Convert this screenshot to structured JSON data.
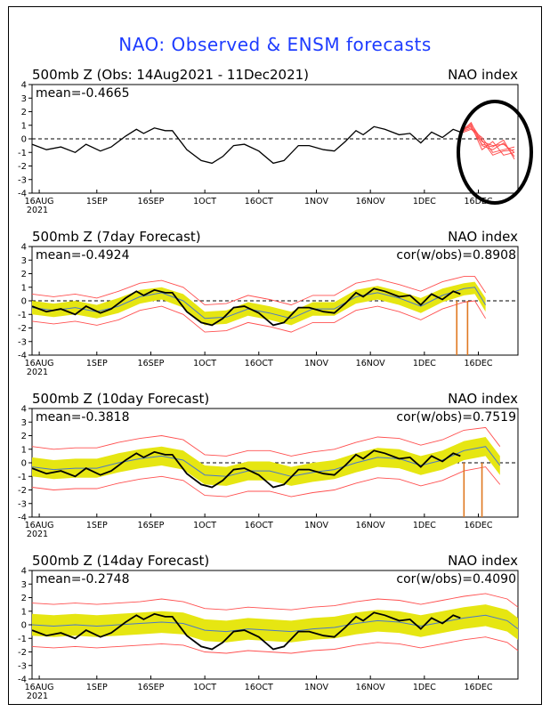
{
  "title": "NAO: Observed & ENSM forecasts",
  "colors": {
    "title": "#1e3cff",
    "observed": "#000000",
    "ensemble_mean": "#4a78c8",
    "spread": "#e6e612",
    "members": "#ff5050",
    "forecast_spike": "#e07820",
    "annotation_circle": "#000000"
  },
  "x_ticks": [
    "16AUG",
    "1SEP",
    "16SEP",
    "1OCT",
    "16OCT",
    "1NOV",
    "16NOV",
    "1DEC",
    "16DEC"
  ],
  "x_year_label": "2021",
  "y_ticks": [
    "4",
    "3",
    "2",
    "1",
    "0",
    "-1",
    "-2",
    "-3",
    "-4"
  ],
  "panels": [
    {
      "key": "obs",
      "label": "500mb Z (Obs: 14Aug2021 - 11Dec2021)",
      "index_label": "NAO index",
      "mean_label": "mean=-0.4665",
      "cor_label": ""
    },
    {
      "key": "d7",
      "label": "500mb Z (7day Forecast)",
      "index_label": "NAO index",
      "mean_label": "mean=-0.4924",
      "cor_label": "cor(w/obs)=0.8908"
    },
    {
      "key": "d10",
      "label": "500mb Z (10day Forecast)",
      "index_label": "NAO index",
      "mean_label": "mean=-0.3818",
      "cor_label": "cor(w/obs)=0.7519"
    },
    {
      "key": "d14",
      "label": "500mb Z (14day Forecast)",
      "index_label": "NAO index",
      "mean_label": "mean=-0.2748",
      "cor_label": "cor(w/obs)=0.4090"
    }
  ],
  "chart_data": {
    "type": "line",
    "x_axis": "date",
    "xlim": [
      "2021-08-14",
      "2021-12-27"
    ],
    "ylim": [
      -4,
      4
    ],
    "observed": {
      "x": [
        "2021-08-14",
        "2021-08-18",
        "2021-08-22",
        "2021-08-26",
        "2021-08-29",
        "2021-09-02",
        "2021-09-05",
        "2021-09-09",
        "2021-09-12",
        "2021-09-14",
        "2021-09-17",
        "2021-09-20",
        "2021-09-22",
        "2021-09-26",
        "2021-09-30",
        "2021-10-03",
        "2021-10-06",
        "2021-10-09",
        "2021-10-12",
        "2021-10-16",
        "2021-10-20",
        "2021-10-23",
        "2021-10-27",
        "2021-10-30",
        "2021-11-03",
        "2021-11-06",
        "2021-11-09",
        "2021-11-12",
        "2021-11-14",
        "2021-11-17",
        "2021-11-20",
        "2021-11-24",
        "2021-11-27",
        "2021-11-30",
        "2021-12-03",
        "2021-12-06",
        "2021-12-09",
        "2021-12-11"
      ],
      "y": [
        -0.4,
        -0.8,
        -0.6,
        -1.0,
        -0.4,
        -0.9,
        -0.6,
        0.2,
        0.7,
        0.4,
        0.8,
        0.6,
        0.6,
        -0.8,
        -1.6,
        -1.8,
        -1.3,
        -0.5,
        -0.4,
        -0.9,
        -1.8,
        -1.6,
        -0.5,
        -0.5,
        -0.8,
        -0.9,
        -0.2,
        0.6,
        0.3,
        0.9,
        0.7,
        0.3,
        0.4,
        -0.3,
        0.5,
        0.1,
        0.7,
        0.5
      ]
    },
    "forecast_members_obs_panel": {
      "x": [
        "2021-12-11",
        "2021-12-14",
        "2021-12-17",
        "2021-12-20",
        "2021-12-23",
        "2021-12-26"
      ],
      "members": [
        [
          0.6,
          0.9,
          -0.2,
          -0.5,
          -0.4,
          -1.0
        ],
        [
          0.5,
          1.2,
          -0.5,
          -0.8,
          -0.3,
          -1.3
        ],
        [
          0.4,
          0.7,
          0.1,
          -1.0,
          -0.8,
          -0.6
        ],
        [
          0.6,
          1.0,
          -0.8,
          -0.2,
          -1.2,
          -1.0
        ],
        [
          0.5,
          0.8,
          -0.4,
          -0.6,
          -0.1,
          -1.5
        ],
        [
          0.4,
          1.1,
          -0.1,
          -1.2,
          -0.9,
          -0.8
        ]
      ]
    },
    "forecasts": {
      "d7": {
        "x": [
          "2021-08-14",
          "2021-08-20",
          "2021-08-26",
          "2021-09-01",
          "2021-09-07",
          "2021-09-13",
          "2021-09-19",
          "2021-09-25",
          "2021-10-01",
          "2021-10-07",
          "2021-10-13",
          "2021-10-19",
          "2021-10-25",
          "2021-10-31",
          "2021-11-06",
          "2021-11-12",
          "2021-11-18",
          "2021-11-24",
          "2021-11-30",
          "2021-12-06",
          "2021-12-12",
          "2021-12-15",
          "2021-12-18"
        ],
        "ensemble_mean": [
          -0.5,
          -0.7,
          -0.5,
          -0.8,
          -0.4,
          0.3,
          0.6,
          0.0,
          -1.3,
          -1.2,
          -0.6,
          -0.9,
          -1.3,
          -0.6,
          -0.6,
          0.3,
          0.6,
          0.2,
          -0.4,
          0.4,
          0.9,
          1.0,
          -0.3
        ],
        "spread_upper": [
          0.0,
          -0.2,
          0.0,
          -0.3,
          0.2,
          0.8,
          1.0,
          0.5,
          -0.8,
          -0.7,
          -0.1,
          -0.4,
          -0.8,
          -0.1,
          -0.1,
          0.8,
          1.1,
          0.7,
          0.2,
          0.9,
          1.3,
          1.4,
          0.2
        ],
        "spread_lower": [
          -1.0,
          -1.2,
          -1.0,
          -1.3,
          -0.9,
          -0.2,
          0.1,
          -0.5,
          -1.8,
          -1.7,
          -1.1,
          -1.4,
          -1.8,
          -1.1,
          -1.1,
          -0.2,
          0.1,
          -0.3,
          -0.9,
          -0.1,
          0.4,
          0.5,
          -0.8
        ],
        "members_upper": [
          0.5,
          0.3,
          0.5,
          0.2,
          0.7,
          1.3,
          1.5,
          1.0,
          -0.3,
          -0.2,
          0.4,
          0.1,
          -0.3,
          0.4,
          0.4,
          1.3,
          1.6,
          1.2,
          0.7,
          1.4,
          1.8,
          1.8,
          0.6
        ],
        "members_lower": [
          -1.5,
          -1.7,
          -1.5,
          -1.8,
          -1.4,
          -0.7,
          -0.4,
          -1.0,
          -2.3,
          -2.2,
          -1.6,
          -1.9,
          -2.3,
          -1.6,
          -1.6,
          -0.7,
          -0.4,
          -0.8,
          -1.4,
          -0.6,
          -0.1,
          0.0,
          -1.3
        ],
        "spikes": [
          {
            "x": "2021-12-10",
            "y": -4
          },
          {
            "x": "2021-12-13",
            "y": -4
          }
        ]
      },
      "d10": {
        "x": [
          "2021-08-14",
          "2021-08-20",
          "2021-08-26",
          "2021-09-01",
          "2021-09-07",
          "2021-09-13",
          "2021-09-19",
          "2021-09-25",
          "2021-10-01",
          "2021-10-07",
          "2021-10-13",
          "2021-10-19",
          "2021-10-25",
          "2021-10-31",
          "2021-11-06",
          "2021-11-12",
          "2021-11-18",
          "2021-11-24",
          "2021-11-30",
          "2021-12-06",
          "2021-12-12",
          "2021-12-18",
          "2021-12-22"
        ],
        "ensemble_mean": [
          -0.3,
          -0.5,
          -0.4,
          -0.4,
          0.0,
          0.3,
          0.5,
          0.2,
          -0.9,
          -1.0,
          -0.6,
          -0.6,
          -1.0,
          -0.7,
          -0.5,
          0.0,
          0.4,
          0.3,
          -0.2,
          0.2,
          0.9,
          1.2,
          -0.2
        ],
        "spread_upper": [
          0.4,
          0.2,
          0.3,
          0.3,
          0.7,
          1.0,
          1.2,
          0.9,
          -0.2,
          -0.3,
          0.1,
          0.1,
          -0.3,
          0.0,
          0.2,
          0.7,
          1.1,
          1.0,
          0.5,
          0.9,
          1.6,
          1.9,
          0.5
        ],
        "spread_lower": [
          -1.0,
          -1.2,
          -1.1,
          -1.1,
          -0.7,
          -0.4,
          -0.2,
          -0.5,
          -1.6,
          -1.7,
          -1.3,
          -1.3,
          -1.7,
          -1.4,
          -1.2,
          -0.7,
          -0.3,
          -0.4,
          -0.9,
          -0.5,
          0.2,
          0.5,
          -0.9
        ],
        "members_upper": [
          1.2,
          1.0,
          1.1,
          1.1,
          1.5,
          1.8,
          2.0,
          1.7,
          0.6,
          0.5,
          0.9,
          0.9,
          0.5,
          0.8,
          1.0,
          1.5,
          1.9,
          1.8,
          1.3,
          1.7,
          2.4,
          2.6,
          1.2
        ],
        "members_lower": [
          -1.8,
          -2.0,
          -1.9,
          -1.9,
          -1.5,
          -1.2,
          -1.0,
          -1.3,
          -2.4,
          -2.5,
          -2.1,
          -2.1,
          -2.5,
          -2.2,
          -2.0,
          -1.5,
          -1.1,
          -1.2,
          -1.7,
          -1.3,
          -0.6,
          -0.3,
          -1.6
        ],
        "spikes": [
          {
            "x": "2021-12-12",
            "y": -4
          },
          {
            "x": "2021-12-17",
            "y": -4
          }
        ]
      },
      "d14": {
        "x": [
          "2021-08-14",
          "2021-08-20",
          "2021-08-26",
          "2021-09-01",
          "2021-09-07",
          "2021-09-13",
          "2021-09-19",
          "2021-09-25",
          "2021-10-01",
          "2021-10-07",
          "2021-10-13",
          "2021-10-19",
          "2021-10-25",
          "2021-10-31",
          "2021-11-06",
          "2021-11-12",
          "2021-11-18",
          "2021-11-24",
          "2021-11-30",
          "2021-12-06",
          "2021-12-12",
          "2021-12-18",
          "2021-12-24",
          "2021-12-27"
        ],
        "ensemble_mean": [
          0.0,
          -0.1,
          0.0,
          -0.1,
          0.0,
          0.1,
          0.2,
          0.1,
          -0.4,
          -0.5,
          -0.3,
          -0.4,
          -0.5,
          -0.3,
          -0.2,
          0.1,
          0.3,
          0.2,
          -0.1,
          0.2,
          0.5,
          0.7,
          0.3,
          -0.3
        ],
        "spread_upper": [
          0.8,
          0.7,
          0.8,
          0.7,
          0.8,
          0.9,
          1.0,
          0.9,
          0.4,
          0.3,
          0.5,
          0.4,
          0.3,
          0.5,
          0.6,
          0.9,
          1.1,
          1.0,
          0.7,
          1.0,
          1.3,
          1.5,
          1.1,
          0.5
        ],
        "spread_lower": [
          -0.8,
          -0.9,
          -0.8,
          -0.9,
          -0.8,
          -0.7,
          -0.6,
          -0.7,
          -1.2,
          -1.3,
          -1.1,
          -1.2,
          -1.3,
          -1.1,
          -1.0,
          -0.7,
          -0.5,
          -0.6,
          -0.9,
          -0.6,
          -0.3,
          -0.1,
          -0.5,
          -1.1
        ],
        "members_upper": [
          1.6,
          1.5,
          1.6,
          1.5,
          1.6,
          1.7,
          1.9,
          1.7,
          1.2,
          1.1,
          1.3,
          1.2,
          1.1,
          1.3,
          1.4,
          1.7,
          1.9,
          1.8,
          1.5,
          1.8,
          2.1,
          2.3,
          1.9,
          1.3
        ],
        "members_lower": [
          -1.6,
          -1.7,
          -1.6,
          -1.7,
          -1.6,
          -1.5,
          -1.4,
          -1.5,
          -2.0,
          -2.1,
          -1.9,
          -2.0,
          -2.1,
          -1.9,
          -1.8,
          -1.5,
          -1.3,
          -1.4,
          -1.7,
          -1.4,
          -1.1,
          -0.9,
          -1.3,
          -1.9
        ],
        "spikes": []
      }
    }
  }
}
